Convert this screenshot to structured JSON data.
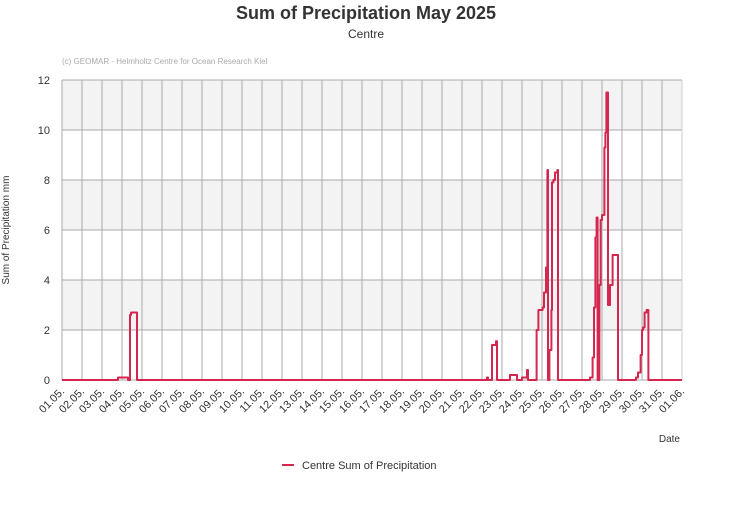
{
  "chart_data": {
    "type": "line",
    "title": "Sum of Precipitation May 2025",
    "subtitle": "Centre",
    "credit": "(c) GEOMAR - Helmholtz Centre for Ocean Research Kiel",
    "xlabel": "Date",
    "ylabel": "Sum of Precipitation mm",
    "ylim": [
      0,
      12
    ],
    "yticks": [
      0,
      2,
      4,
      6,
      8,
      10,
      12
    ],
    "xticks": [
      "01.05.",
      "02.05.",
      "03.05.",
      "04.05.",
      "05.05.",
      "06.05.",
      "07.05.",
      "08.05.",
      "09.05.",
      "10.05.",
      "11.05.",
      "12.05.",
      "13.05.",
      "14.05.",
      "15.05.",
      "16.05.",
      "17.05.",
      "18.05.",
      "19.05.",
      "20.05.",
      "21.05.",
      "22.05.",
      "23.05.",
      "24.05.",
      "25.05.",
      "26.05.",
      "27.05.",
      "28.05.",
      "29.05.",
      "30.05.",
      "31.05.",
      "01.06."
    ],
    "x_unit": "days since 01.05. 00:00",
    "grid": true,
    "legend_position": "bottom-center",
    "series": [
      {
        "name": "Centre Sum of Precipitation",
        "color": "#d4264f",
        "step": true,
        "points": [
          [
            0,
            0
          ],
          [
            2.8,
            0.1
          ],
          [
            3.3,
            0
          ],
          [
            3.4,
            2.6
          ],
          [
            3.45,
            2.7
          ],
          [
            3.75,
            0
          ],
          [
            21.25,
            0.1
          ],
          [
            21.3,
            0
          ],
          [
            21.5,
            1.4
          ],
          [
            21.7,
            1.55
          ],
          [
            21.75,
            0
          ],
          [
            22.4,
            0.2
          ],
          [
            22.75,
            0
          ],
          [
            23.0,
            0.1
          ],
          [
            23.25,
            0.4
          ],
          [
            23.3,
            0
          ],
          [
            23.73,
            2.0
          ],
          [
            23.82,
            2.8
          ],
          [
            24.03,
            2.9
          ],
          [
            24.1,
            3.5
          ],
          [
            24.2,
            4.5
          ],
          [
            24.27,
            8.4
          ],
          [
            24.3,
            0
          ],
          [
            24.37,
            1.2
          ],
          [
            24.47,
            2.8
          ],
          [
            24.5,
            7.9
          ],
          [
            24.57,
            8.0
          ],
          [
            24.65,
            8.3
          ],
          [
            24.77,
            8.4
          ],
          [
            24.8,
            0
          ],
          [
            26.4,
            0.1
          ],
          [
            26.53,
            0.9
          ],
          [
            26.6,
            2.9
          ],
          [
            26.67,
            5.7
          ],
          [
            26.73,
            6.5
          ],
          [
            26.78,
            0
          ],
          [
            26.87,
            3.8
          ],
          [
            26.93,
            6.4
          ],
          [
            27.0,
            6.6
          ],
          [
            27.12,
            9.3
          ],
          [
            27.17,
            9.9
          ],
          [
            27.22,
            11.5
          ],
          [
            27.3,
            3.0
          ],
          [
            27.4,
            3.8
          ],
          [
            27.53,
            5.0
          ],
          [
            27.8,
            0
          ],
          [
            28.7,
            0.1
          ],
          [
            28.8,
            0.3
          ],
          [
            28.93,
            1.0
          ],
          [
            29.0,
            2.0
          ],
          [
            29.05,
            2.1
          ],
          [
            29.13,
            2.7
          ],
          [
            29.23,
            2.8
          ],
          [
            29.32,
            0
          ],
          [
            31,
            0
          ]
        ]
      }
    ]
  }
}
